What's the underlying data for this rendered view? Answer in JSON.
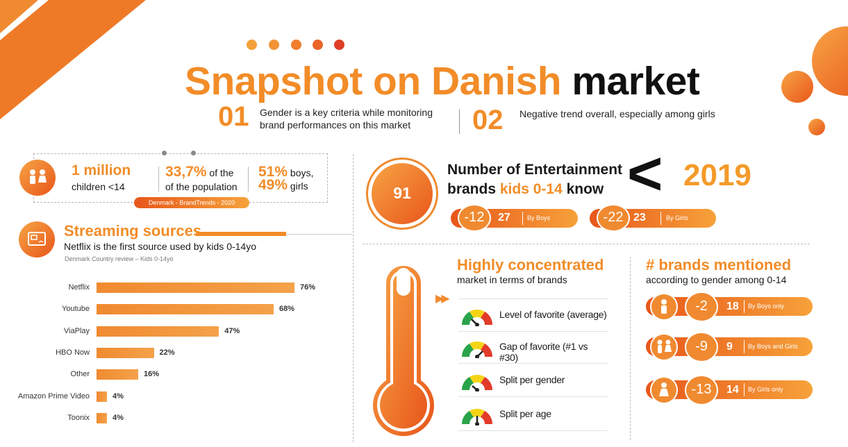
{
  "title": {
    "part1": "Snapshot on Danish",
    "part2": "market"
  },
  "points": [
    {
      "num": "01",
      "text_line1": "Gender is a key criteria while monitoring",
      "text_line2": "brand performances on this market"
    },
    {
      "num": "02",
      "text_line1": "Negative trend overall, especially among girls"
    }
  ],
  "stats": {
    "children_big": "1 million",
    "children_sub": "children <14",
    "pop_big": "33,7%",
    "pop_of": " of the",
    "pop_sub": "of the population",
    "boys_big": "51%",
    "boys_word": " boys,",
    "girls_big": "49%",
    "girls_word": " girls",
    "source": "Denmark - BrandTrends - 2020"
  },
  "streaming": {
    "title": "Streaming sources",
    "subtitle": "Netflix is the first source used by kids 0-14yo",
    "source": "Denmark Country review – Kids 0-14yo"
  },
  "chart_data": {
    "type": "bar",
    "orientation": "horizontal",
    "categories": [
      "Netflix",
      "Youtube",
      "ViaPlay",
      "HBO Now",
      "Other",
      "Amazon Prime Video",
      "Toonix"
    ],
    "values": [
      76,
      68,
      47,
      22,
      16,
      4,
      4
    ],
    "value_labels": [
      "76%",
      "68%",
      "47%",
      "22%",
      "16%",
      "4%",
      "4%"
    ],
    "color": "#f28c28"
  },
  "entertainment": {
    "number": "91",
    "line1": "Number of Entertainment",
    "line2a": "brands ",
    "line2b": "kids 0-14",
    "line2c": " know",
    "symbol": "<",
    "year": "2019",
    "boys": {
      "delta": "-12",
      "value": "27",
      "label": "By Boys"
    },
    "girls": {
      "delta": "-22",
      "value": "23",
      "label": "By Girls"
    }
  },
  "concentrated": {
    "title": "Highly concentrated",
    "subtitle": "market in terms of brands",
    "items": [
      "Level of favorite (average)",
      "Gap of favorite (#1 vs #30)",
      "Split per gender",
      "Split per age"
    ]
  },
  "brands_mentioned": {
    "title": "# brands mentioned",
    "subtitle": "according to gender among 0-14",
    "rows": [
      {
        "delta": "-2",
        "value": "18",
        "label": "By Boys only"
      },
      {
        "delta": "-9",
        "value": "9",
        "label": "By Boys and Girls"
      },
      {
        "delta": "-13",
        "value": "14",
        "label": "By Girls only"
      }
    ]
  },
  "colors": {
    "accent": "#f28c28",
    "accent_dark": "#e8561a",
    "accent_red": "#d9352b"
  }
}
